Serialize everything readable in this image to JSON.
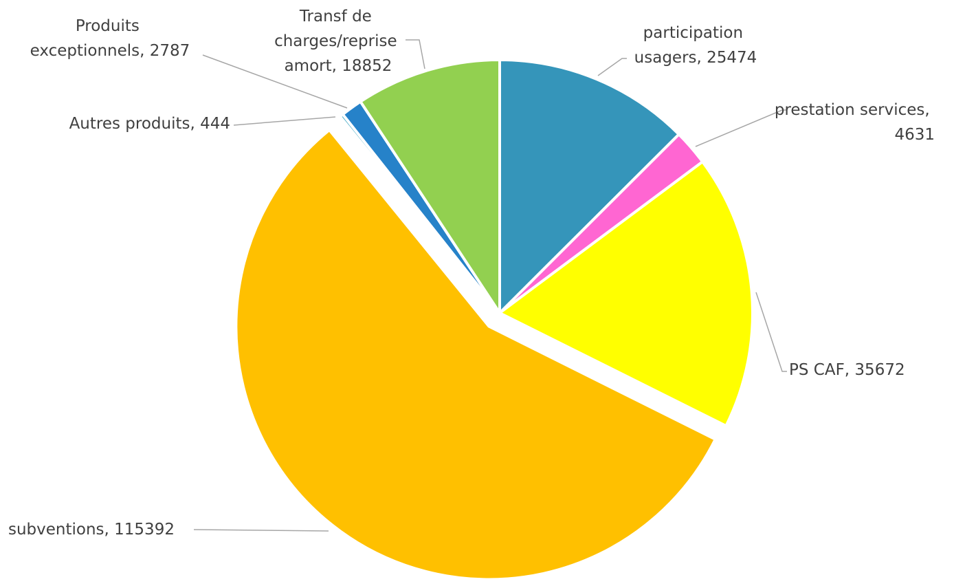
{
  "chart_data": {
    "type": "pie",
    "categories": [
      "participation usagers",
      "prestation services",
      "PS CAF",
      "subventions",
      "Autres produits",
      "Produits exceptionnels",
      "Transf de charges/reprise amort"
    ],
    "values": [
      25474,
      4631,
      35672,
      115392,
      444,
      2787,
      18852
    ],
    "value_labels": [
      "participation usagers, 25474",
      "prestation services, 4631",
      "PS CAF, 35672",
      "subventions, 115392",
      "Autres produits, 444",
      "Produits exceptionnels, 2787",
      "Transf de charges/reprise amort, 18852"
    ],
    "colors": [
      "#3595ba",
      "#ff66d2",
      "#ffff00",
      "#ffc000",
      "#4bacc6",
      "#2682c9",
      "#92d050"
    ],
    "exploded": [
      false,
      false,
      false,
      true,
      false,
      false,
      false
    ]
  }
}
